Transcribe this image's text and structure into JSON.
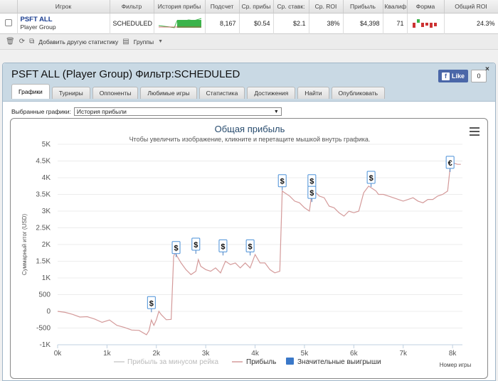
{
  "stats_table": {
    "headers": [
      "Игрок",
      "Фильтр",
      "История прибы",
      "Подсчет",
      "Ср. прибы",
      "Ср. ставк:",
      "Ср. ROI",
      "Прибыль",
      "Квалиф",
      "Форма",
      "Общий ROI"
    ],
    "row": {
      "player_name": "PSFT ALL",
      "player_group": "Player Group",
      "filter": "SCHEDULED",
      "count": "8,167",
      "avg_profit": "$0.54",
      "avg_stake": "$2.1",
      "avg_roi": "38%",
      "profit": "$4,398",
      "qualif": "71",
      "total_roi": "24.3%"
    }
  },
  "toolbar": {
    "add_stat": "Добавить другую статистику",
    "groups": "Группы"
  },
  "panel": {
    "title": "PSFT ALL (Player Group) Фильтр:SCHEDULED",
    "like_label": "Like",
    "like_count": "0",
    "close_symbol": "×",
    "tabs": [
      "Графики",
      "Турниры",
      "Оппоненты",
      "Любимые игры",
      "Статистика",
      "Достижения",
      "Найти",
      "Опубликовать"
    ],
    "graph_select_label": "Выбранные графики:",
    "graph_select_value": "История прибыли"
  },
  "chart_data": {
    "type": "line",
    "title": "Общая прибыль",
    "subtitle": "Чтобы увеличить изображение, кликните и перетащите мышкой внутрь графика.",
    "ylabel": "Суммарный итог (USD)",
    "xlabel": "Номер игры",
    "ylim": [
      -1000,
      5000
    ],
    "xlim": [
      0,
      8200
    ],
    "y_ticks": [
      "-1K",
      "-500",
      "0",
      "500",
      "1K",
      "1.5K",
      "2K",
      "2.5K",
      "3K",
      "3.5K",
      "4K",
      "4.5K",
      "5K"
    ],
    "x_ticks": [
      "0k",
      "1k",
      "2k",
      "3k",
      "4k",
      "5k",
      "6k",
      "7k",
      "8k"
    ],
    "legend": [
      "Прибыль за минусом рейка",
      "Прибыль",
      "Значительные выигрыши"
    ],
    "legend_placement": "bottom",
    "colors": {
      "profit": "#d49a9a",
      "rake": "#cccccc",
      "big_wins": "#3a78c8"
    },
    "series": [
      {
        "name": "Прибыль",
        "x": [
          0,
          150,
          300,
          450,
          600,
          750,
          900,
          1050,
          1200,
          1350,
          1500,
          1650,
          1800,
          1850,
          1900,
          1950,
          2000,
          2050,
          2100,
          2200,
          2300,
          2350,
          2380,
          2400,
          2500,
          2600,
          2700,
          2800,
          2850,
          2900,
          3000,
          3100,
          3200,
          3300,
          3400,
          3500,
          3600,
          3700,
          3800,
          3900,
          4000,
          4100,
          4200,
          4300,
          4400,
          4500,
          4550,
          4600,
          4700,
          4800,
          4900,
          5000,
          5100,
          5150,
          5200,
          5300,
          5400,
          5500,
          5600,
          5700,
          5800,
          5900,
          6000,
          6100,
          6200,
          6300,
          6400,
          6450,
          6500,
          6600,
          6700,
          6800,
          6900,
          7000,
          7100,
          7200,
          7300,
          7400,
          7500,
          7600,
          7700,
          7800,
          7900,
          7950,
          8000,
          8100,
          8167
        ],
        "values": [
          0,
          -30,
          -90,
          -170,
          -160,
          -230,
          -330,
          -260,
          -420,
          -480,
          -560,
          -570,
          -700,
          -580,
          -260,
          -420,
          -250,
          0,
          -100,
          -250,
          -240,
          1650,
          1750,
          1700,
          1450,
          1250,
          1100,
          1200,
          1550,
          1350,
          1250,
          1200,
          1300,
          1150,
          1500,
          1400,
          1450,
          1300,
          1450,
          1300,
          1700,
          1450,
          1450,
          1250,
          1150,
          1200,
          3600,
          3550,
          3450,
          3300,
          3250,
          3100,
          3000,
          3550,
          3600,
          3450,
          3400,
          3150,
          3100,
          2950,
          2850,
          3000,
          2950,
          3000,
          3550,
          3750,
          3650,
          3600,
          3500,
          3500,
          3450,
          3400,
          3350,
          3300,
          3350,
          3400,
          3300,
          3250,
          3350,
          3350,
          3450,
          3500,
          3600,
          4300,
          4450,
          4400,
          4400
        ]
      }
    ],
    "big_wins": [
      {
        "x": 1900,
        "y": 250,
        "symbol": "$"
      },
      {
        "x": 2400,
        "y": 1900,
        "symbol": "$"
      },
      {
        "x": 2800,
        "y": 2000,
        "symbol": "$"
      },
      {
        "x": 3350,
        "y": 1950,
        "symbol": "$"
      },
      {
        "x": 3900,
        "y": 1950,
        "symbol": "$"
      },
      {
        "x": 4550,
        "y": 3900,
        "symbol": "$"
      },
      {
        "x": 5150,
        "y": 3900,
        "symbol": "$"
      },
      {
        "x": 5150,
        "y": 3550,
        "symbol": "$"
      },
      {
        "x": 6350,
        "y": 4000,
        "symbol": "$"
      },
      {
        "x": 7950,
        "y": 4450,
        "symbol": "€"
      }
    ]
  }
}
